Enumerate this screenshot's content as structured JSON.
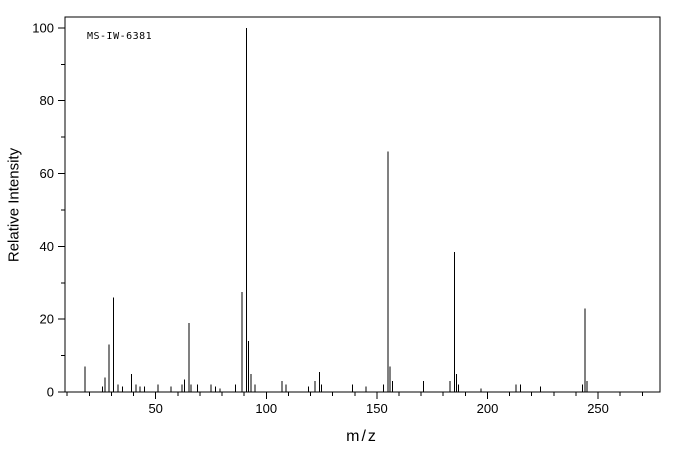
{
  "chart_data": {
    "type": "bar",
    "title": "MS-IW-6381",
    "xlabel": "m/z",
    "ylabel": "Relative Intensity",
    "xlim": [
      9,
      278
    ],
    "ylim": [
      0,
      103
    ],
    "x_major_ticks": [
      50,
      100,
      150,
      200,
      250
    ],
    "x_minor_step": 10,
    "y_major_ticks": [
      0,
      20,
      40,
      60,
      80,
      100
    ],
    "y_minor_step": 10,
    "grid": "off",
    "axis_color": "#000000",
    "peak_color": "#000000",
    "background": "#ffffff",
    "peaks": [
      {
        "mz": 18,
        "ri": 7
      },
      {
        "mz": 26,
        "ri": 1.5
      },
      {
        "mz": 27,
        "ri": 4
      },
      {
        "mz": 29,
        "ri": 13
      },
      {
        "mz": 31,
        "ri": 26
      },
      {
        "mz": 33,
        "ri": 2
      },
      {
        "mz": 35,
        "ri": 1.5
      },
      {
        "mz": 39,
        "ri": 5
      },
      {
        "mz": 41,
        "ri": 2
      },
      {
        "mz": 43,
        "ri": 1.5
      },
      {
        "mz": 45,
        "ri": 1.5
      },
      {
        "mz": 51,
        "ri": 2
      },
      {
        "mz": 57,
        "ri": 1.5
      },
      {
        "mz": 62,
        "ri": 2
      },
      {
        "mz": 63,
        "ri": 3.5
      },
      {
        "mz": 65,
        "ri": 19
      },
      {
        "mz": 66,
        "ri": 2
      },
      {
        "mz": 69,
        "ri": 2
      },
      {
        "mz": 75,
        "ri": 2
      },
      {
        "mz": 77,
        "ri": 1.5
      },
      {
        "mz": 79,
        "ri": 1
      },
      {
        "mz": 86,
        "ri": 2
      },
      {
        "mz": 89,
        "ri": 27.5
      },
      {
        "mz": 91,
        "ri": 100
      },
      {
        "mz": 92,
        "ri": 14
      },
      {
        "mz": 93,
        "ri": 5
      },
      {
        "mz": 95,
        "ri": 2
      },
      {
        "mz": 107,
        "ri": 3
      },
      {
        "mz": 109,
        "ri": 2
      },
      {
        "mz": 119,
        "ri": 1.5
      },
      {
        "mz": 122,
        "ri": 3
      },
      {
        "mz": 124,
        "ri": 5.5
      },
      {
        "mz": 125,
        "ri": 2
      },
      {
        "mz": 139,
        "ri": 2
      },
      {
        "mz": 145,
        "ri": 1.5
      },
      {
        "mz": 153,
        "ri": 2
      },
      {
        "mz": 155,
        "ri": 66
      },
      {
        "mz": 156,
        "ri": 7
      },
      {
        "mz": 157,
        "ri": 3
      },
      {
        "mz": 171,
        "ri": 3
      },
      {
        "mz": 183,
        "ri": 3
      },
      {
        "mz": 185,
        "ri": 38.5
      },
      {
        "mz": 186,
        "ri": 5
      },
      {
        "mz": 187,
        "ri": 2
      },
      {
        "mz": 197,
        "ri": 1
      },
      {
        "mz": 213,
        "ri": 2
      },
      {
        "mz": 215,
        "ri": 2
      },
      {
        "mz": 224,
        "ri": 1.5
      },
      {
        "mz": 243,
        "ri": 2
      },
      {
        "mz": 244,
        "ri": 23
      },
      {
        "mz": 245,
        "ri": 3
      }
    ]
  }
}
